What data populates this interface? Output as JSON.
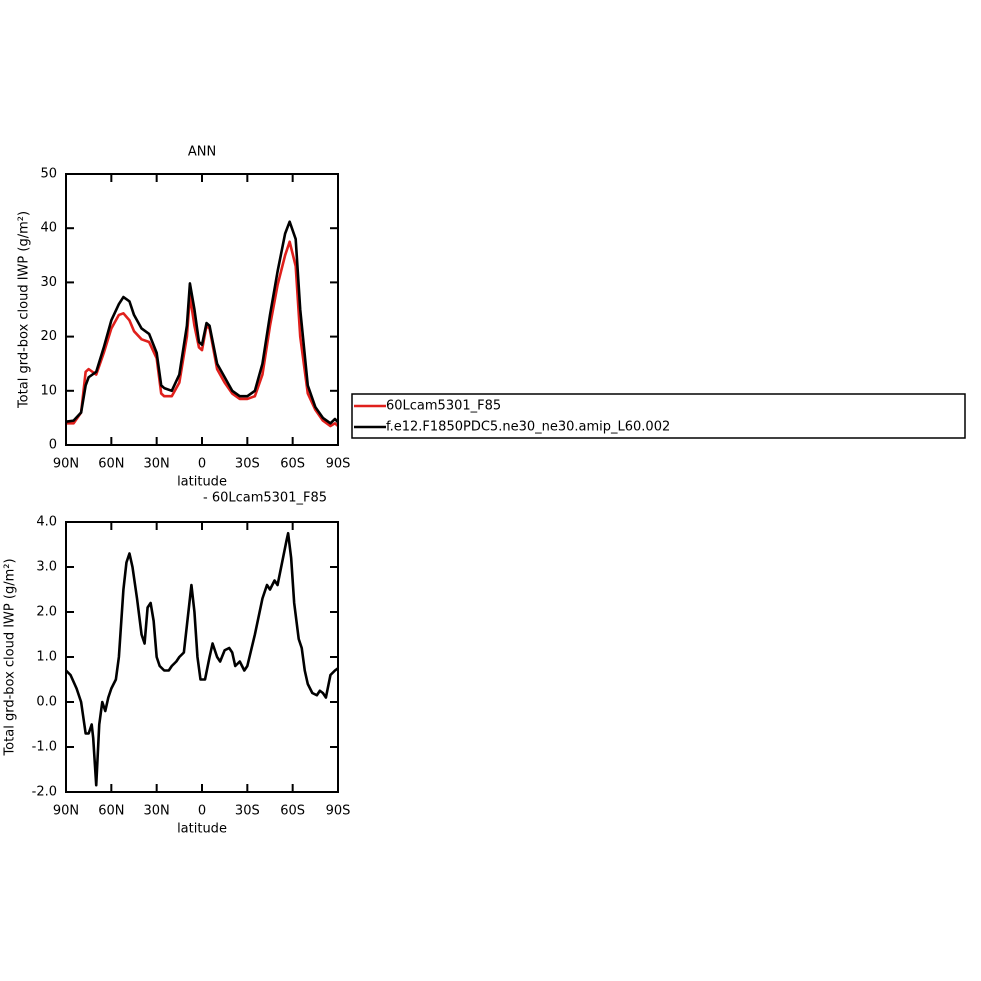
{
  "chart_data": [
    {
      "type": "line",
      "title": "ANN",
      "xlabel": "latitude",
      "ylabel": "Total grd-box cloud IWP (g/m²)",
      "x": [
        90,
        85,
        80,
        77,
        75,
        70,
        65,
        60,
        55,
        52,
        48,
        45,
        40,
        35,
        30,
        27,
        25,
        20,
        15,
        10,
        8,
        5,
        2,
        0,
        -3,
        -5,
        -10,
        -15,
        -20,
        -25,
        -30,
        -35,
        -40,
        -45,
        -50,
        -55,
        -58,
        -62,
        -65,
        -70,
        -75,
        -80,
        -85,
        -88,
        -90
      ],
      "series": [
        {
          "name": "60Lcam5301_F85",
          "color": "#e0201c",
          "values": [
            4,
            4,
            6,
            13.5,
            14,
            13,
            17,
            21.5,
            24,
            24.3,
            23,
            21,
            19.5,
            19,
            16,
            9.5,
            9,
            9,
            11.5,
            20,
            27.5,
            22,
            18,
            17.5,
            22,
            21.5,
            14,
            11.5,
            9.5,
            8.5,
            8.5,
            9,
            13,
            22,
            29.5,
            35,
            37.5,
            33,
            20,
            9.5,
            6.5,
            4.5,
            3.5,
            4,
            3.5
          ]
        },
        {
          "name": "f.e12.F1850PDC5.ne30_ne30.amip_L60.002",
          "color": "#000000",
          "values": [
            4.3,
            4.5,
            6,
            11,
            12.5,
            13.5,
            18,
            23,
            26,
            27.3,
            26.5,
            24,
            21.5,
            20.5,
            17,
            11,
            10.5,
            10,
            13,
            22,
            29.8,
            25,
            19,
            18.5,
            22.5,
            22,
            15,
            12.5,
            10,
            9,
            9,
            10,
            15,
            24,
            32,
            39,
            41.2,
            38,
            25,
            11,
            7,
            5,
            4,
            4.8,
            4.2
          ]
        }
      ],
      "xlim": [
        90,
        -90
      ],
      "xticks": [
        {
          "value": 90,
          "label": "90N"
        },
        {
          "value": 60,
          "label": "60N"
        },
        {
          "value": 30,
          "label": "30N"
        },
        0,
        {
          "value": -30,
          "label": "30S"
        },
        {
          "value": -60,
          "label": "60S"
        },
        {
          "value": -90,
          "label": "90S"
        }
      ],
      "ylim": [
        0,
        50
      ],
      "yticks": [
        0,
        10,
        20,
        30,
        40,
        50
      ]
    },
    {
      "type": "line",
      "title": "- 60Lcam5301_F85",
      "xlabel": "latitude",
      "ylabel": "Total grd-box cloud IWP (g/m²)",
      "x": [
        90,
        87,
        83,
        80,
        77,
        75,
        73,
        72,
        70,
        68,
        66,
        64,
        62,
        60,
        57,
        55,
        52,
        50,
        48,
        46,
        43,
        40,
        38,
        36,
        34,
        32,
        30,
        28,
        25,
        22,
        20,
        17,
        15,
        12,
        10,
        7,
        5,
        3,
        1,
        -2,
        -5,
        -7,
        -10,
        -12,
        -15,
        -18,
        -20,
        -22,
        -25,
        -28,
        -30,
        -35,
        -40,
        -43,
        -45,
        -48,
        -50,
        -53,
        -56,
        -57,
        -59,
        -61,
        -64,
        -66,
        -68,
        -70,
        -73,
        -76,
        -78,
        -80,
        -82,
        -85,
        -88,
        -90
      ],
      "values": [
        0.7,
        0.6,
        0.3,
        0.0,
        -0.7,
        -0.7,
        -0.5,
        -0.8,
        -1.85,
        -0.5,
        0.0,
        -0.2,
        0.1,
        0.3,
        0.5,
        1.0,
        2.5,
        3.1,
        3.3,
        3.0,
        2.3,
        1.5,
        1.3,
        2.1,
        2.2,
        1.8,
        1.0,
        0.8,
        0.7,
        0.7,
        0.8,
        0.9,
        1.0,
        1.1,
        1.7,
        2.6,
        2.0,
        1.0,
        0.5,
        0.5,
        1.0,
        1.3,
        1.0,
        0.9,
        1.15,
        1.2,
        1.1,
        0.8,
        0.9,
        0.7,
        0.8,
        1.5,
        2.3,
        2.6,
        2.5,
        2.7,
        2.6,
        3.1,
        3.6,
        3.75,
        3.2,
        2.2,
        1.4,
        1.2,
        0.7,
        0.4,
        0.2,
        0.15,
        0.25,
        0.2,
        0.1,
        0.6,
        0.7,
        0.75
      ],
      "color": "#000000",
      "xlim": [
        90,
        -90
      ],
      "xticks": [
        {
          "value": 90,
          "label": "90N"
        },
        {
          "value": 60,
          "label": "60N"
        },
        {
          "value": 30,
          "label": "30N"
        },
        0,
        {
          "value": -30,
          "label": "30S"
        },
        {
          "value": -60,
          "label": "60S"
        },
        {
          "value": -90,
          "label": "90S"
        }
      ],
      "ylim": [
        -2,
        4
      ],
      "yticks": [
        {
          "value": -2,
          "label": "-2.0"
        },
        {
          "value": -1,
          "label": "-1.0"
        },
        {
          "value": 0,
          "label": "0.0"
        },
        {
          "value": 1,
          "label": "1.0"
        },
        {
          "value": 2,
          "label": "2.0"
        },
        {
          "value": 3,
          "label": "3.0"
        },
        {
          "value": 4,
          "label": "4.0"
        }
      ]
    }
  ]
}
